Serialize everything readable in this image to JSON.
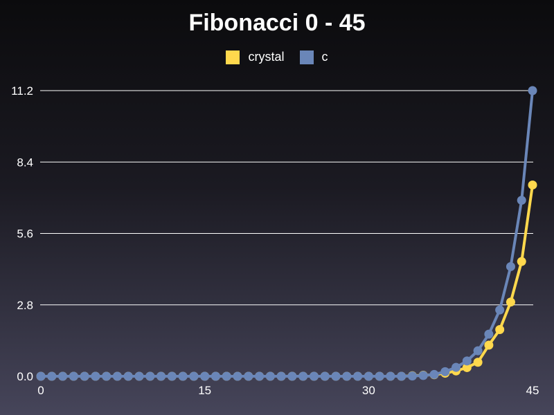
{
  "chart_data": {
    "type": "line",
    "title": "Fibonacci 0 - 45",
    "xlabel": "",
    "ylabel": "",
    "x": [
      0,
      1,
      2,
      3,
      4,
      5,
      6,
      7,
      8,
      9,
      10,
      11,
      12,
      13,
      14,
      15,
      16,
      17,
      18,
      19,
      20,
      21,
      22,
      23,
      24,
      25,
      26,
      27,
      28,
      29,
      30,
      31,
      32,
      33,
      34,
      35,
      36,
      37,
      38,
      39,
      40,
      41,
      42,
      43,
      44,
      45
    ],
    "xlim": [
      0,
      45
    ],
    "ylim": [
      0,
      11.2
    ],
    "x_ticks": [
      "0",
      "15",
      "30",
      "45"
    ],
    "y_ticks": [
      "0.0",
      "2.8",
      "5.6",
      "8.4",
      "11.2"
    ],
    "grid": true,
    "legend_position": "top-center",
    "series": [
      {
        "name": "crystal",
        "color": "#ffd84d",
        "values": [
          0,
          0,
          0,
          0,
          0,
          0,
          0,
          0,
          0,
          0,
          0,
          0,
          0,
          0,
          0,
          0,
          0,
          0,
          0,
          0,
          0,
          0,
          0,
          0,
          0,
          0,
          0,
          0,
          0,
          0,
          0,
          0,
          0,
          0,
          0.02,
          0.04,
          0.06,
          0.12,
          0.21,
          0.34,
          0.55,
          1.22,
          1.83,
          2.91,
          4.5,
          7.5
        ]
      },
      {
        "name": "c",
        "color": "#6a86b8",
        "values": [
          0,
          0,
          0,
          0,
          0,
          0,
          0,
          0,
          0,
          0,
          0,
          0,
          0,
          0,
          0,
          0,
          0,
          0,
          0,
          0,
          0,
          0,
          0,
          0,
          0,
          0,
          0,
          0,
          0,
          0,
          0,
          0,
          0,
          0,
          0.01,
          0.03,
          0.07,
          0.18,
          0.35,
          0.6,
          1.0,
          1.65,
          2.6,
          4.3,
          6.9,
          11.2
        ]
      }
    ]
  },
  "colors": {
    "background_top": "#0b0b0d",
    "background_bottom": "#46455a",
    "gridline": "#ffffff",
    "text": "#ffffff"
  }
}
